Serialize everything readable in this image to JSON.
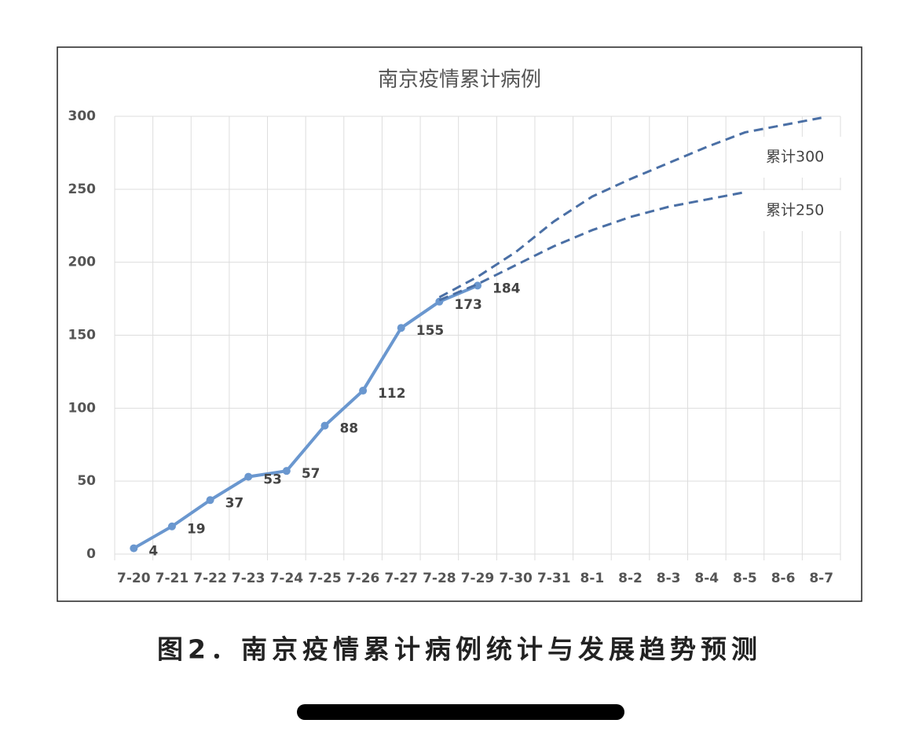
{
  "chart_data": {
    "type": "line",
    "title": "南京疫情累计病例",
    "caption": "图2．南京疫情累计病例统计与发展趋势预测",
    "categories": [
      "7-20",
      "7-21",
      "7-22",
      "7-23",
      "7-24",
      "7-25",
      "7-26",
      "7-27",
      "7-28",
      "7-29",
      "7-30",
      "7-31",
      "8-1",
      "8-2",
      "8-3",
      "8-4",
      "8-5",
      "8-6",
      "8-7"
    ],
    "series": [
      {
        "name": "累计",
        "color": "#6a97cf",
        "style": "solid",
        "data_labels": true,
        "values": [
          4,
          19,
          37,
          53,
          57,
          88,
          112,
          155,
          173,
          184,
          null,
          null,
          null,
          null,
          null,
          null,
          null,
          null,
          null
        ]
      },
      {
        "name": "累计300",
        "color": "#4a6fa5",
        "style": "dashed",
        "values": [
          null,
          null,
          null,
          null,
          null,
          null,
          null,
          null,
          176,
          190,
          207,
          228,
          245,
          257,
          268,
          279,
          289,
          294,
          299
        ]
      },
      {
        "name": "累计250",
        "color": "#4a6fa5",
        "style": "dashed",
        "values": [
          null,
          null,
          null,
          null,
          null,
          null,
          null,
          null,
          174,
          185,
          198,
          211,
          222,
          231,
          238,
          243,
          248,
          null,
          null
        ]
      }
    ],
    "ylim": [
      0,
      300
    ],
    "yticks": [
      0,
      50,
      100,
      150,
      200,
      250,
      300
    ],
    "grid": true
  }
}
